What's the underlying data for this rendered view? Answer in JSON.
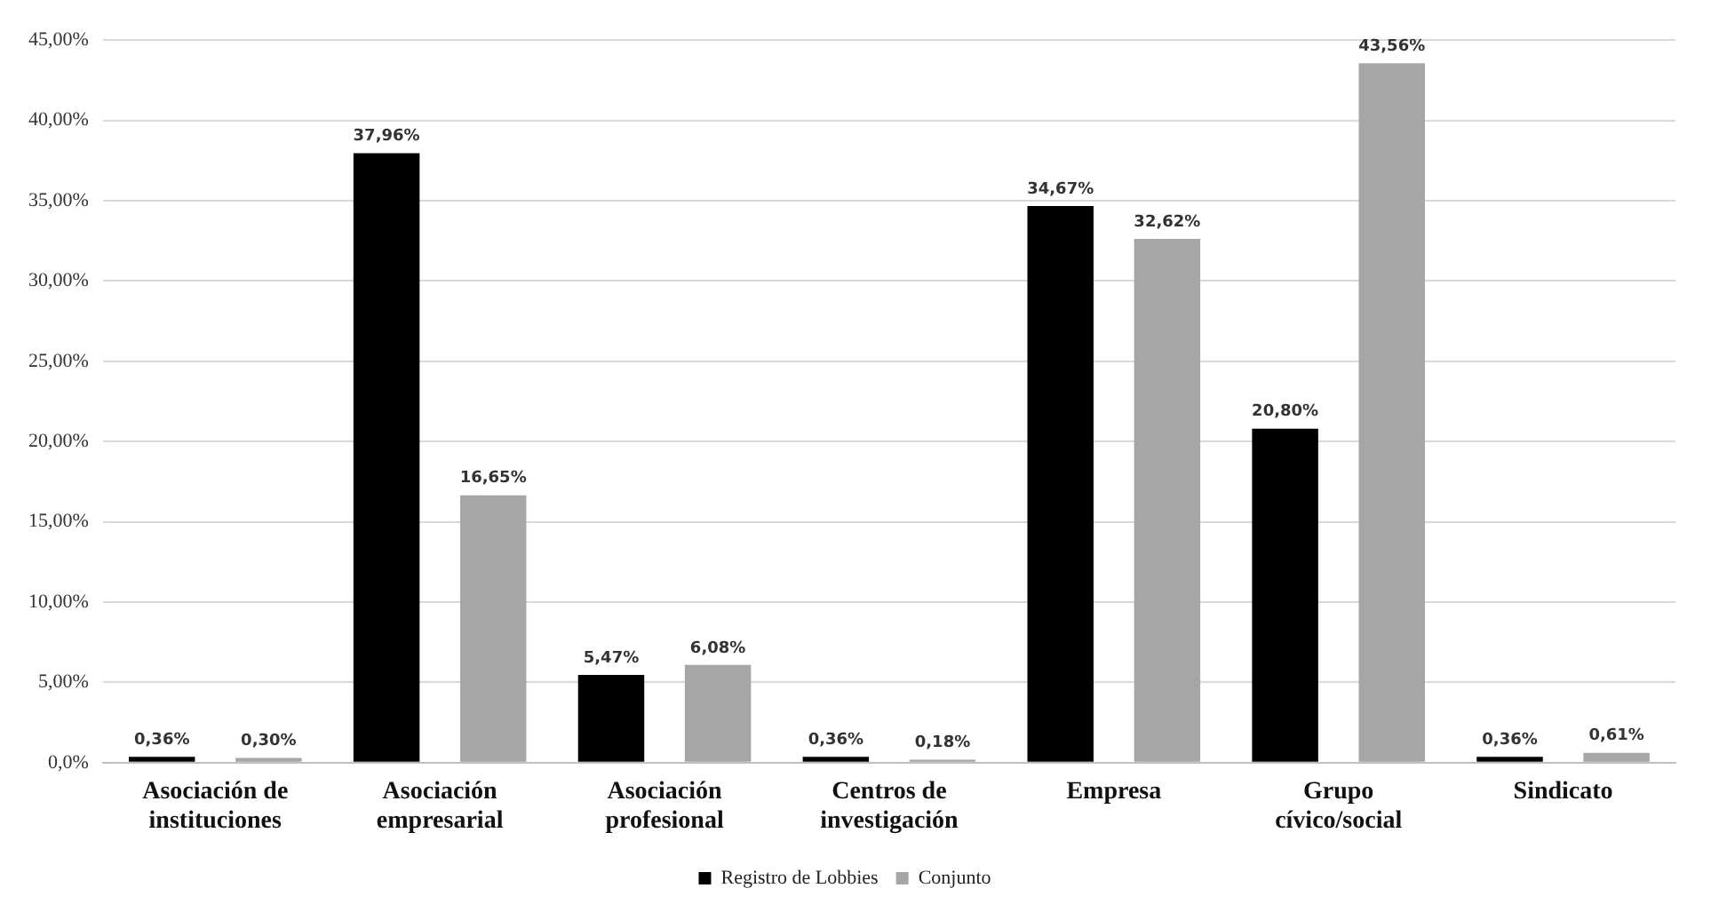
{
  "chart_data": {
    "type": "bar",
    "categories": [
      "Asociación de instituciones",
      "Asociación empresarial",
      "Asociación profesional",
      "Centros de investigación",
      "Empresa",
      "Grupo cívico/social",
      "Sindicato"
    ],
    "series": [
      {
        "name": "Registro de Lobbies",
        "color": "#000000",
        "values": [
          0.36,
          37.96,
          5.47,
          0.36,
          34.67,
          20.8,
          0.36
        ],
        "value_labels": [
          "0,36%",
          "37,96%",
          "5,47%",
          "0,36%",
          "34,67%",
          "20,80%",
          "0,36%"
        ]
      },
      {
        "name": "Conjunto",
        "color": "#a6a6a6",
        "values": [
          0.3,
          16.65,
          6.08,
          0.18,
          32.62,
          43.56,
          0.61
        ],
        "value_labels": [
          "0,30%",
          "16,65%",
          "6,08%",
          "0,18%",
          "32,62%",
          "43,56%",
          "0,61%"
        ]
      }
    ],
    "ylim": [
      0,
      45
    ],
    "yticks": [
      {
        "value": 0,
        "label": "0,0%"
      },
      {
        "value": 5,
        "label": "5,00%"
      },
      {
        "value": 10,
        "label": "10,00%"
      },
      {
        "value": 15,
        "label": "15,00%"
      },
      {
        "value": 20,
        "label": "20,00%"
      },
      {
        "value": 25,
        "label": "25,00%"
      },
      {
        "value": 30,
        "label": "30,00%"
      },
      {
        "value": 35,
        "label": "35,00%"
      },
      {
        "value": 40,
        "label": "40,00%"
      },
      {
        "value": 45,
        "label": "45,00%"
      }
    ],
    "grid": "y",
    "legend": "bottom"
  }
}
